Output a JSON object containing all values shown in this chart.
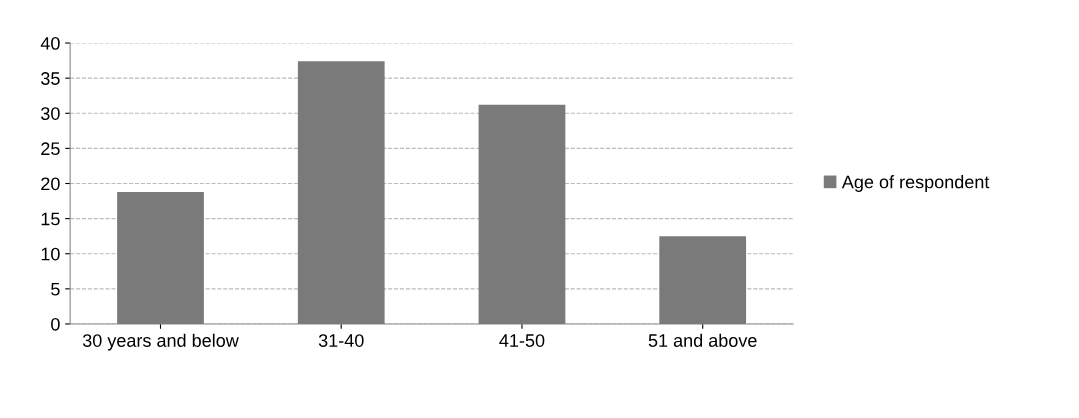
{
  "chart_data": {
    "type": "bar",
    "categories": [
      "30 years and below",
      "31-40",
      "41-50",
      "51 and above"
    ],
    "series": [
      {
        "name": "Age of respondent",
        "color": "#7a7a7a",
        "values": [
          18.8,
          37.4,
          31.2,
          12.5
        ]
      }
    ],
    "ylim": [
      0,
      40
    ],
    "yticks": [
      0,
      5,
      10,
      15,
      20,
      25,
      30,
      35,
      40
    ],
    "grid": "y",
    "legend": "right"
  }
}
